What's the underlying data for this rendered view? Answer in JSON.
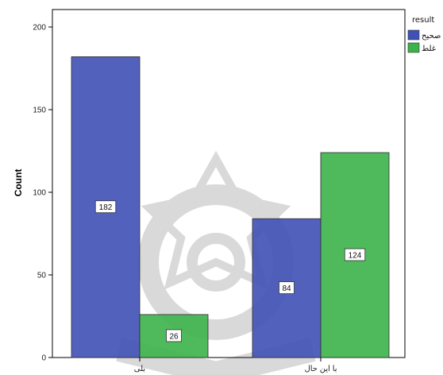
{
  "chart_data": {
    "type": "bar",
    "ylabel": "Count",
    "ylim": [
      0,
      200
    ],
    "yticks": [
      0,
      50,
      100,
      150,
      200
    ],
    "categories": [
      "بلی",
      "با این حال"
    ],
    "legend_title": "result",
    "legend_position": "top-right",
    "grid": false,
    "series": [
      {
        "name": "صحیح",
        "color": "#3F51B5",
        "values": [
          182,
          84
        ]
      },
      {
        "name": "غلط",
        "color": "#3BB34A",
        "values": [
          26,
          124
        ]
      }
    ],
    "data_labels": [
      [
        "182",
        "84"
      ],
      [
        "26",
        "124"
      ]
    ]
  }
}
